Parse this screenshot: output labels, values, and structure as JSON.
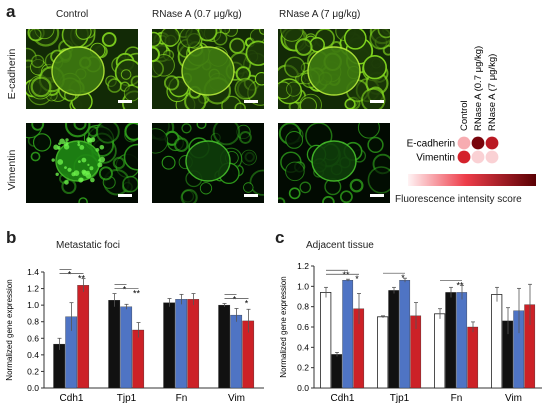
{
  "panel_a": {
    "letter": "a",
    "columns": [
      "Control",
      "RNase A (0.7 μg/kg)",
      "RNase A (7 μg/kg)"
    ],
    "rows": [
      "E-cadherin",
      "Vimentin"
    ],
    "matrix": {
      "col_labels": [
        "Control",
        "RNase A (0.7 μg/kg)",
        "RNase A (7 μg/kg)"
      ],
      "row_labels": [
        "E-cadherin",
        "Vimentin"
      ],
      "intensity": [
        [
          0.15,
          0.95,
          0.7
        ],
        [
          0.6,
          0.05,
          0.05
        ]
      ],
      "low_color": "#fbe3e6",
      "high_color": "#6b0006"
    },
    "legend_label": "Fluorescence intensity score"
  },
  "panel_b": {
    "letter": "b",
    "title": "Metastatic foci"
  },
  "panel_c": {
    "letter": "c",
    "title": "Adjacent tissue"
  },
  "colors": {
    "white_bar": "#ffffff",
    "black_bar": "#111111",
    "blue_bar": "#4f74c4",
    "red_bar": "#cc2127",
    "green": "#3ad42a"
  },
  "chart_data": [
    {
      "type": "bar",
      "ylabel": "Normalized gene expression",
      "categories": [
        "Cdh1",
        "Tjp1",
        "Fn",
        "Vim"
      ],
      "ylim": [
        0,
        1.4
      ],
      "yticks": [
        "0.0",
        "0.2",
        "0.4",
        "0.6",
        "0.8",
        "1.0",
        "1.2",
        "1.4"
      ],
      "series": [
        {
          "color": "#111111",
          "values": [
            0.53,
            1.06,
            1.03,
            1.0
          ],
          "errors": [
            0.07,
            0.08,
            0.05,
            0.02
          ]
        },
        {
          "color": "#4f74c4",
          "values": [
            0.86,
            0.98,
            1.07,
            0.88
          ],
          "errors": [
            0.17,
            0.03,
            0.06,
            0.08
          ]
        },
        {
          "color": "#cc2127",
          "values": [
            1.24,
            0.7,
            1.07,
            0.81
          ],
          "errors": [
            0.08,
            0.09,
            0.07,
            0.14
          ]
        }
      ],
      "significance": [
        {
          "category": 0,
          "labels": [
            "*",
            "**"
          ]
        },
        {
          "category": 1,
          "labels": [
            "*",
            "**"
          ]
        },
        {
          "category": 3,
          "labels": [
            "*",
            "*"
          ]
        }
      ]
    },
    {
      "type": "bar",
      "ylabel": "Normalized gene expression",
      "categories": [
        "Cdh1",
        "Tjp1",
        "Fn",
        "Vim"
      ],
      "ylim": [
        0,
        1.2
      ],
      "yticks": [
        "0.0",
        "0.2",
        "0.4",
        "0.6",
        "0.8",
        "1.0",
        "1.2"
      ],
      "series": [
        {
          "color": "#ffffff",
          "values": [
            0.94,
            0.7,
            0.73,
            0.92
          ],
          "errors": [
            0.05,
            0.01,
            0.05,
            0.07
          ]
        },
        {
          "color": "#111111",
          "values": [
            0.33,
            0.96,
            0.94,
            0.66
          ],
          "errors": [
            0.02,
            0.03,
            0.05,
            0.13
          ]
        },
        {
          "color": "#4f74c4",
          "values": [
            1.06,
            1.06,
            0.94,
            0.76
          ],
          "errors": [
            0.01,
            0.02,
            0.07,
            0.22
          ]
        },
        {
          "color": "#cc2127",
          "values": [
            0.78,
            0.71,
            0.6,
            0.82
          ],
          "errors": [
            0.15,
            0.13,
            0.05,
            0.2
          ]
        }
      ],
      "significance": [
        {
          "category": 0,
          "labels": [
            "**",
            "*"
          ]
        },
        {
          "category": 1,
          "labels": [
            "*"
          ]
        },
        {
          "category": 2,
          "labels": [
            "**"
          ]
        }
      ]
    }
  ]
}
